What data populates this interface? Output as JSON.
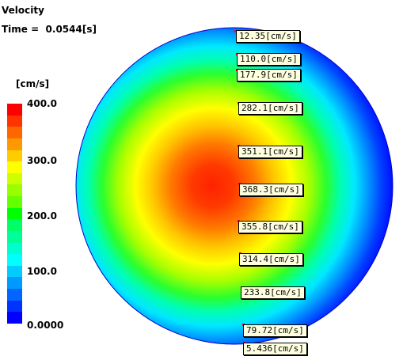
{
  "header": {
    "title": "Velocity",
    "time": "Time =  0.0544[s]"
  },
  "legend": {
    "units": "[cm/s]",
    "ticks": [
      "400.0",
      "300.0",
      "200.0",
      "100.0",
      "0.0000"
    ],
    "range": [
      0,
      400
    ]
  },
  "probes": [
    {
      "label": "12.35[cm/s]",
      "value": 12.35
    },
    {
      "label": "110.0[cm/s]",
      "value": 110.0
    },
    {
      "label": "177.9[cm/s]",
      "value": 177.9
    },
    {
      "label": "282.1[cm/s]",
      "value": 282.1
    },
    {
      "label": "351.1[cm/s]",
      "value": 351.1
    },
    {
      "label": "368.3[cm/s]",
      "value": 368.3
    },
    {
      "label": "355.8[cm/s]",
      "value": 355.8
    },
    {
      "label": "314.4[cm/s]",
      "value": 314.4
    },
    {
      "label": "233.8[cm/s]",
      "value": 233.8
    },
    {
      "label": "79.72[cm/s]",
      "value": 79.72
    },
    {
      "label": "5.436[cm/s]",
      "value": 5.436
    }
  ],
  "colors": {
    "scale_top_to_bottom": [
      "#ff0000",
      "#ff3300",
      "#ff6600",
      "#ff9900",
      "#ffcc00",
      "#ffff00",
      "#ccff00",
      "#99ff00",
      "#66ff00",
      "#00ff00",
      "#00ff66",
      "#00ff99",
      "#00ffcc",
      "#00ffff",
      "#00ccff",
      "#0099ff",
      "#0066ff",
      "#0033ff",
      "#0000ff"
    ]
  }
}
